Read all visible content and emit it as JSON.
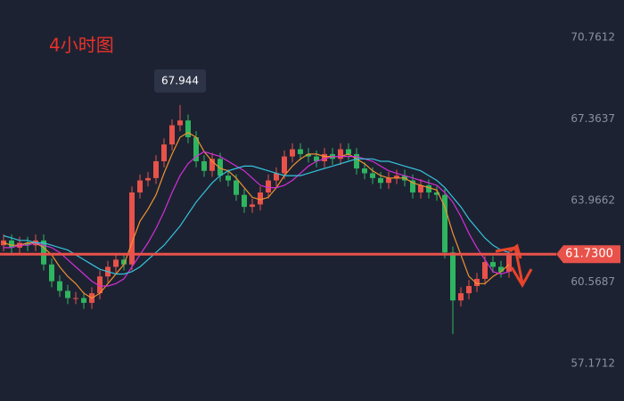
{
  "chart_data": {
    "type": "candlestick",
    "title": "4小时图",
    "ylim": [
      55.61,
      72.32
    ],
    "yticks": [
      70.7612,
      67.3637,
      63.9662,
      60.5687,
      57.1712
    ],
    "up_color": "#e8524a",
    "down_color": "#2eb55f",
    "last_price": {
      "value": 61.73,
      "label": "61.7300"
    },
    "open": [
      62.1,
      62.3,
      62.0,
      62.2,
      62.1,
      62.3,
      61.3,
      60.6,
      60.2,
      59.9,
      59.9,
      59.7,
      60.1,
      60.8,
      61.2,
      61.5,
      61.3,
      64.3,
      64.8,
      64.9,
      65.6,
      66.3,
      67.1,
      67.3,
      66.6,
      65.6,
      65.2,
      65.7,
      65.0,
      64.8,
      64.2,
      63.7,
      63.8,
      64.3,
      64.8,
      65.1,
      65.8,
      66.1,
      65.9,
      65.8,
      65.6,
      65.9,
      65.7,
      66.1,
      65.9,
      65.3,
      65.1,
      64.9,
      64.7,
      64.9,
      65.0,
      64.8,
      64.3,
      64.6,
      64.3,
      64.2,
      61.8,
      59.8,
      60.1,
      60.4,
      60.7,
      61.4,
      61.2,
      61.0
    ],
    "high": [
      62.55,
      62.55,
      62.45,
      62.45,
      62.55,
      62.55,
      61.55,
      60.85,
      60.45,
      60.15,
      60.15,
      60.35,
      61.05,
      61.45,
      61.75,
      61.75,
      64.55,
      65.05,
      65.15,
      65.85,
      66.55,
      67.35,
      67.944,
      67.55,
      66.85,
      65.85,
      65.95,
      65.95,
      65.25,
      65.05,
      64.45,
      64.05,
      64.55,
      65.05,
      65.35,
      66.05,
      66.35,
      66.35,
      66.15,
      66.05,
      66.15,
      66.15,
      66.35,
      66.35,
      66.15,
      65.55,
      65.35,
      65.15,
      65.15,
      65.25,
      65.25,
      65.05,
      64.85,
      64.85,
      64.55,
      64.45,
      62.05,
      60.35,
      60.65,
      60.95,
      61.65,
      61.65,
      61.45,
      61.98
    ],
    "low": [
      61.85,
      61.75,
      61.75,
      61.85,
      61.85,
      61.05,
      60.35,
      59.95,
      59.65,
      59.65,
      59.45,
      59.45,
      59.85,
      60.55,
      60.95,
      61.05,
      61.05,
      64.05,
      64.55,
      64.65,
      65.35,
      66.05,
      66.85,
      66.35,
      65.35,
      64.95,
      64.95,
      64.75,
      64.55,
      63.95,
      63.45,
      63.45,
      63.55,
      64.05,
      64.55,
      64.85,
      65.55,
      65.65,
      65.55,
      65.35,
      65.35,
      65.45,
      65.45,
      65.65,
      65.05,
      64.85,
      64.65,
      64.45,
      64.45,
      64.65,
      64.55,
      64.05,
      64.05,
      64.05,
      63.95,
      61.55,
      58.4,
      59.55,
      59.85,
      60.15,
      60.45,
      60.95,
      60.75,
      60.75
    ],
    "close": [
      62.3,
      62.0,
      62.2,
      62.1,
      62.3,
      61.3,
      60.6,
      60.2,
      59.9,
      59.9,
      59.7,
      60.1,
      60.8,
      61.2,
      61.5,
      61.3,
      64.3,
      64.8,
      64.9,
      65.6,
      66.3,
      67.1,
      67.3,
      66.6,
      65.6,
      65.2,
      65.7,
      65.0,
      64.8,
      64.2,
      63.7,
      63.8,
      64.3,
      64.8,
      65.1,
      65.8,
      66.1,
      65.9,
      65.8,
      65.6,
      65.9,
      65.7,
      66.1,
      65.9,
      65.3,
      65.1,
      64.9,
      64.7,
      64.9,
      65.0,
      64.8,
      64.3,
      64.6,
      64.3,
      64.2,
      61.8,
      59.8,
      60.1,
      60.4,
      60.7,
      61.4,
      61.2,
      61.0,
      61.73
    ],
    "series": [
      {
        "color": "#f0922e",
        "values": [
          62.2,
          62.1,
          62.1,
          62.2,
          62.2,
          62.0,
          61.7,
          61.2,
          60.8,
          60.5,
          60.1,
          59.9,
          60.1,
          60.5,
          60.9,
          61.3,
          62.2,
          63.1,
          63.6,
          64.2,
          65.1,
          65.9,
          66.6,
          66.8,
          66.6,
          66.0,
          65.6,
          65.3,
          65.2,
          64.9,
          64.5,
          64.1,
          64.0,
          64.1,
          64.5,
          65.0,
          65.4,
          65.7,
          65.9,
          65.9,
          65.8,
          65.8,
          65.8,
          65.9,
          65.7,
          65.5,
          65.2,
          65.0,
          64.9,
          64.9,
          64.9,
          64.7,
          64.6,
          64.5,
          64.4,
          63.7,
          62.6,
          61.7,
          60.8,
          60.5,
          60.5,
          60.8,
          61.0,
          61.3
        ]
      },
      {
        "color": "#d22fd6",
        "values": [
          62.0,
          62.0,
          62.1,
          62.1,
          62.2,
          62.1,
          62.0,
          61.8,
          61.5,
          61.2,
          60.9,
          60.6,
          60.4,
          60.4,
          60.5,
          60.7,
          61.2,
          61.7,
          62.2,
          62.8,
          63.5,
          64.3,
          65.0,
          65.5,
          65.8,
          66.0,
          65.9,
          65.8,
          65.6,
          65.4,
          65.2,
          64.9,
          64.6,
          64.5,
          64.5,
          64.6,
          64.8,
          65.1,
          65.4,
          65.6,
          65.7,
          65.8,
          65.8,
          65.8,
          65.8,
          65.7,
          65.6,
          65.4,
          65.2,
          65.1,
          65.0,
          64.9,
          64.8,
          64.7,
          64.6,
          64.3,
          63.9,
          63.3,
          62.6,
          62.0,
          61.5,
          61.0,
          60.9,
          61.0
        ]
      },
      {
        "color": "#35c3dc",
        "values": [
          62.5,
          62.4,
          62.3,
          62.3,
          62.2,
          62.2,
          62.1,
          62.0,
          61.9,
          61.7,
          61.5,
          61.3,
          61.1,
          61.0,
          60.9,
          60.9,
          61.0,
          61.2,
          61.5,
          61.8,
          62.1,
          62.5,
          62.9,
          63.4,
          63.9,
          64.3,
          64.7,
          65.0,
          65.2,
          65.3,
          65.4,
          65.4,
          65.3,
          65.2,
          65.1,
          65.0,
          65.0,
          65.0,
          65.1,
          65.2,
          65.3,
          65.4,
          65.5,
          65.6,
          65.7,
          65.7,
          65.7,
          65.6,
          65.6,
          65.5,
          65.4,
          65.3,
          65.2,
          65.0,
          64.8,
          64.5,
          64.1,
          63.7,
          63.2,
          62.8,
          62.4,
          62.1,
          61.9,
          61.8
        ]
      }
    ]
  }
}
